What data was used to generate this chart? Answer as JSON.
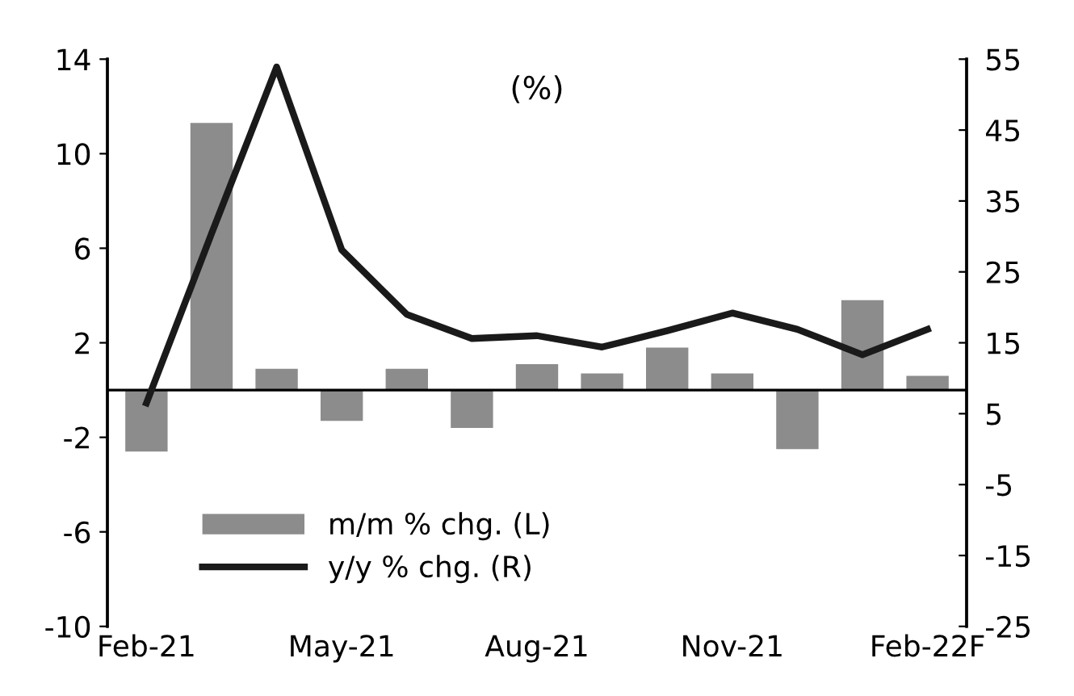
{
  "chart_data": {
    "type": "bar",
    "title": "(%)",
    "categories": [
      "Feb-21",
      null,
      null,
      "May-21",
      null,
      null,
      "Aug-21",
      null,
      null,
      "Nov-21",
      null,
      null,
      "Feb-22F"
    ],
    "series": [
      {
        "name": "m/m % chg. (L)",
        "color": "#8c8c8c",
        "values": [
          -2.6,
          11.3,
          0.9,
          -1.3,
          0.9,
          -1.6,
          1.1,
          0.7,
          1.8,
          0.7,
          -2.5,
          3.8,
          0.6
        ]
      },
      {
        "name": "y/y % chg. (R)",
        "type": "line",
        "axis": "y2",
        "color": "#1a1a1a",
        "values": [
          6.5,
          30.4,
          53.9,
          28.1,
          19.0,
          15.6,
          16.0,
          14.4,
          16.7,
          19.2,
          16.9,
          13.3,
          16.9
        ]
      }
    ],
    "ylim": [
      -10,
      14
    ],
    "yticks": [
      -10,
      -6,
      -2,
      2,
      6,
      10,
      14
    ],
    "y2lim": [
      -25,
      55
    ],
    "y2ticks": [
      -25,
      -15,
      -5,
      5,
      15,
      25,
      35,
      45,
      55
    ],
    "legend": "bottom left",
    "grid": false,
    "marker": "none",
    "line_style": "solid"
  }
}
